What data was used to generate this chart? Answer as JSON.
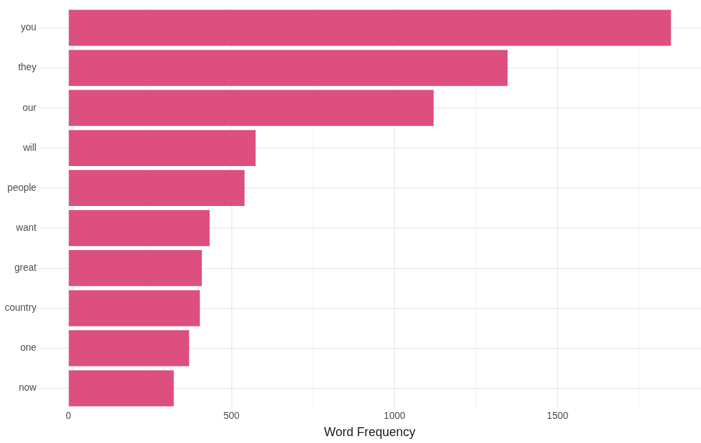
{
  "chart_data": {
    "type": "bar",
    "orientation": "horizontal",
    "xlabel": "Word Frequency",
    "categories": [
      "you",
      "they",
      "our",
      "will",
      "people",
      "want",
      "great",
      "country",
      "one",
      "now"
    ],
    "values": [
      1848,
      1347,
      1120,
      574,
      540,
      433,
      409,
      403,
      370,
      323
    ],
    "color": "#dc4f7e",
    "xlim": [
      -92,
      1940
    ],
    "xticks": [
      0,
      {
        "value": 250,
        "label": null
      },
      500,
      {
        "value": 750,
        "label": null
      },
      1000,
      {
        "value": 1250,
        "label": null
      },
      1500,
      {
        "value": 1750,
        "label": null
      }
    ],
    "grid": true,
    "legend": false
  }
}
